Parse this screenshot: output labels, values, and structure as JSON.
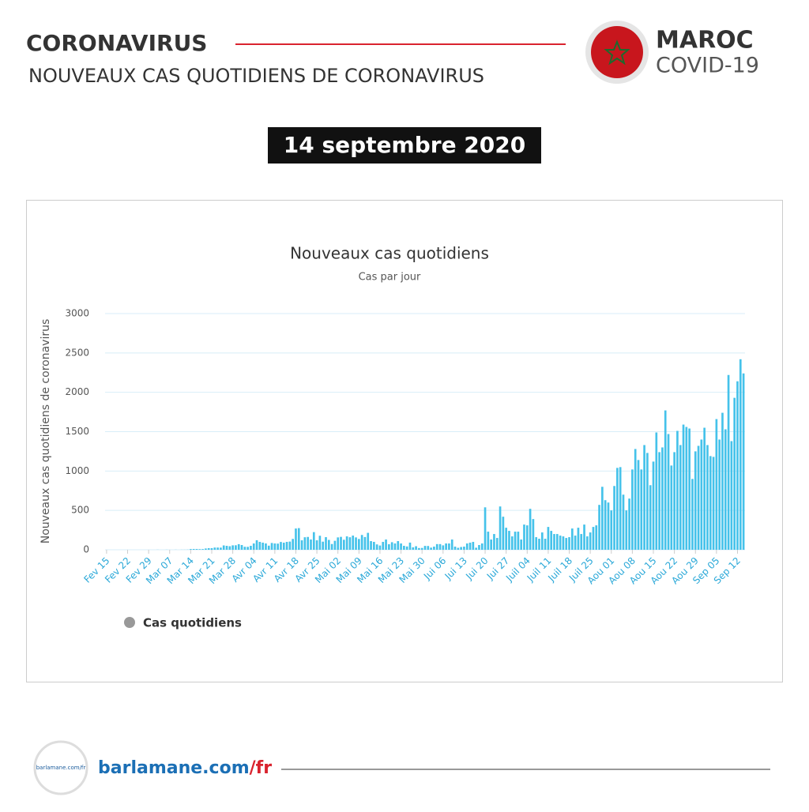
{
  "header": {
    "title": "CORONAVIRUS",
    "subtitle": "NOUVEAUX CAS QUOTIDIENS DE CORONAVIRUS",
    "country": "MAROC",
    "disease": "COVID-19",
    "date": "14 septembre 2020"
  },
  "footer": {
    "logo_text": "barlamane.com/fr",
    "site": "barlamane.com",
    "site_suffix": "/fr"
  },
  "chart_data": {
    "type": "bar",
    "title": "Nouveaux cas quotidiens",
    "subtitle": "Cas par jour",
    "y_label": "Nouveaux cas quotidiens de coronavirus",
    "ylim": [
      0,
      3000
    ],
    "yticks": [
      0,
      500,
      1000,
      1500,
      2000,
      2500,
      3000
    ],
    "grid": true,
    "legend": "bottom-left",
    "categories": [
      "Fev 15",
      null,
      null,
      null,
      null,
      null,
      null,
      "Fev 22",
      null,
      null,
      null,
      null,
      null,
      null,
      "Fev 29",
      null,
      null,
      null,
      null,
      null,
      null,
      "Mar 07",
      null,
      null,
      null,
      null,
      null,
      null,
      "Mar 14",
      null,
      null,
      null,
      null,
      null,
      null,
      "Mar 21",
      null,
      null,
      null,
      null,
      null,
      null,
      "Mar 28",
      null,
      null,
      null,
      null,
      null,
      null,
      "Avr 04",
      null,
      null,
      null,
      null,
      null,
      null,
      "Avr 11",
      null,
      null,
      null,
      null,
      null,
      null,
      "Avr 18",
      null,
      null,
      null,
      null,
      null,
      null,
      "Avr 25",
      null,
      null,
      null,
      null,
      null,
      null,
      "Mai 02",
      null,
      null,
      null,
      null,
      null,
      null,
      "Mai 09",
      null,
      null,
      null,
      null,
      null,
      null,
      "Mai 16",
      null,
      null,
      null,
      null,
      null,
      null,
      "Mai 23",
      null,
      null,
      null,
      null,
      null,
      null,
      "Mai 30",
      null,
      null,
      null,
      null,
      null,
      null,
      "Jui 06",
      null,
      null,
      null,
      null,
      null,
      null,
      "Jui 13",
      null,
      null,
      null,
      null,
      null,
      null,
      "Jui 20",
      null,
      null,
      null,
      null,
      null,
      null,
      "Jui 27",
      null,
      null,
      null,
      null,
      null,
      null,
      "Juil 04",
      null,
      null,
      null,
      null,
      null,
      null,
      "Juil 11",
      null,
      null,
      null,
      null,
      null,
      null,
      "Juil 18",
      null,
      null,
      null,
      null,
      null,
      null,
      "Juil 25",
      null,
      null,
      null,
      null,
      null,
      null,
      "Aou 01",
      null,
      null,
      null,
      null,
      null,
      null,
      "Aou 08",
      null,
      null,
      null,
      null,
      null,
      null,
      "Aou 15",
      null,
      null,
      null,
      null,
      null,
      null,
      "Aou 22",
      null,
      null,
      null,
      null,
      null,
      null,
      "Aou 29",
      null,
      null,
      null,
      null,
      null,
      null,
      "Sep 05",
      null,
      null,
      null,
      null,
      null,
      null,
      "Sep 12",
      null,
      null
    ],
    "series": [
      {
        "name": "Cas quotidiens",
        "color": "#45c2ea",
        "values": [
          0,
          0,
          0,
          0,
          0,
          0,
          0,
          0,
          0,
          0,
          0,
          0,
          0,
          0,
          0,
          0,
          0,
          1,
          0,
          0,
          1,
          0,
          0,
          1,
          0,
          1,
          1,
          2,
          9,
          10,
          10,
          8,
          9,
          16,
          20,
          20,
          28,
          28,
          27,
          55,
          50,
          45,
          56,
          57,
          71,
          60,
          38,
          37,
          50,
          80,
          121,
          100,
          90,
          80,
          52,
          86,
          80,
          78,
          99,
          90,
          100,
          104,
          138,
          270,
          275,
          120,
          159,
          163,
          130,
          224,
          120,
          178,
          103,
          160,
          125,
          73,
          114,
          157,
          164,
          127,
          170,
          159,
          180,
          157,
          137,
          188,
          162,
          215,
          110,
          100,
          68,
          54,
          100,
          130,
          70,
          96,
          80,
          110,
          80,
          50,
          42,
          91,
          31,
          45,
          22,
          23,
          49,
          48,
          27,
          40,
          72,
          72,
          56,
          80,
          80,
          130,
          40,
          25,
          35,
          40,
          80,
          90,
          100,
          26,
          60,
          80,
          539,
          230,
          130,
          200,
          150,
          550,
          420,
          280,
          240,
          170,
          230,
          230,
          130,
          320,
          310,
          520,
          390,
          160,
          140,
          220,
          140,
          290,
          240,
          200,
          200,
          180,
          170,
          150,
          160,
          270,
          180,
          280,
          200,
          320,
          170,
          220,
          290,
          310,
          570,
          800,
          630,
          600,
          500,
          810,
          1040,
          1050,
          700,
          500,
          650,
          1020,
          1280,
          1140,
          1020,
          1330,
          1230,
          820,
          1120,
          1490,
          1240,
          1300,
          1770,
          1470,
          1070,
          1240,
          1510,
          1330,
          1590,
          1560,
          1540,
          900,
          1250,
          1320,
          1400,
          1550,
          1330,
          1190,
          1180,
          1660,
          1400,
          1740,
          1530,
          2220,
          1380,
          1930,
          2140,
          2420,
          2240
        ]
      }
    ]
  }
}
